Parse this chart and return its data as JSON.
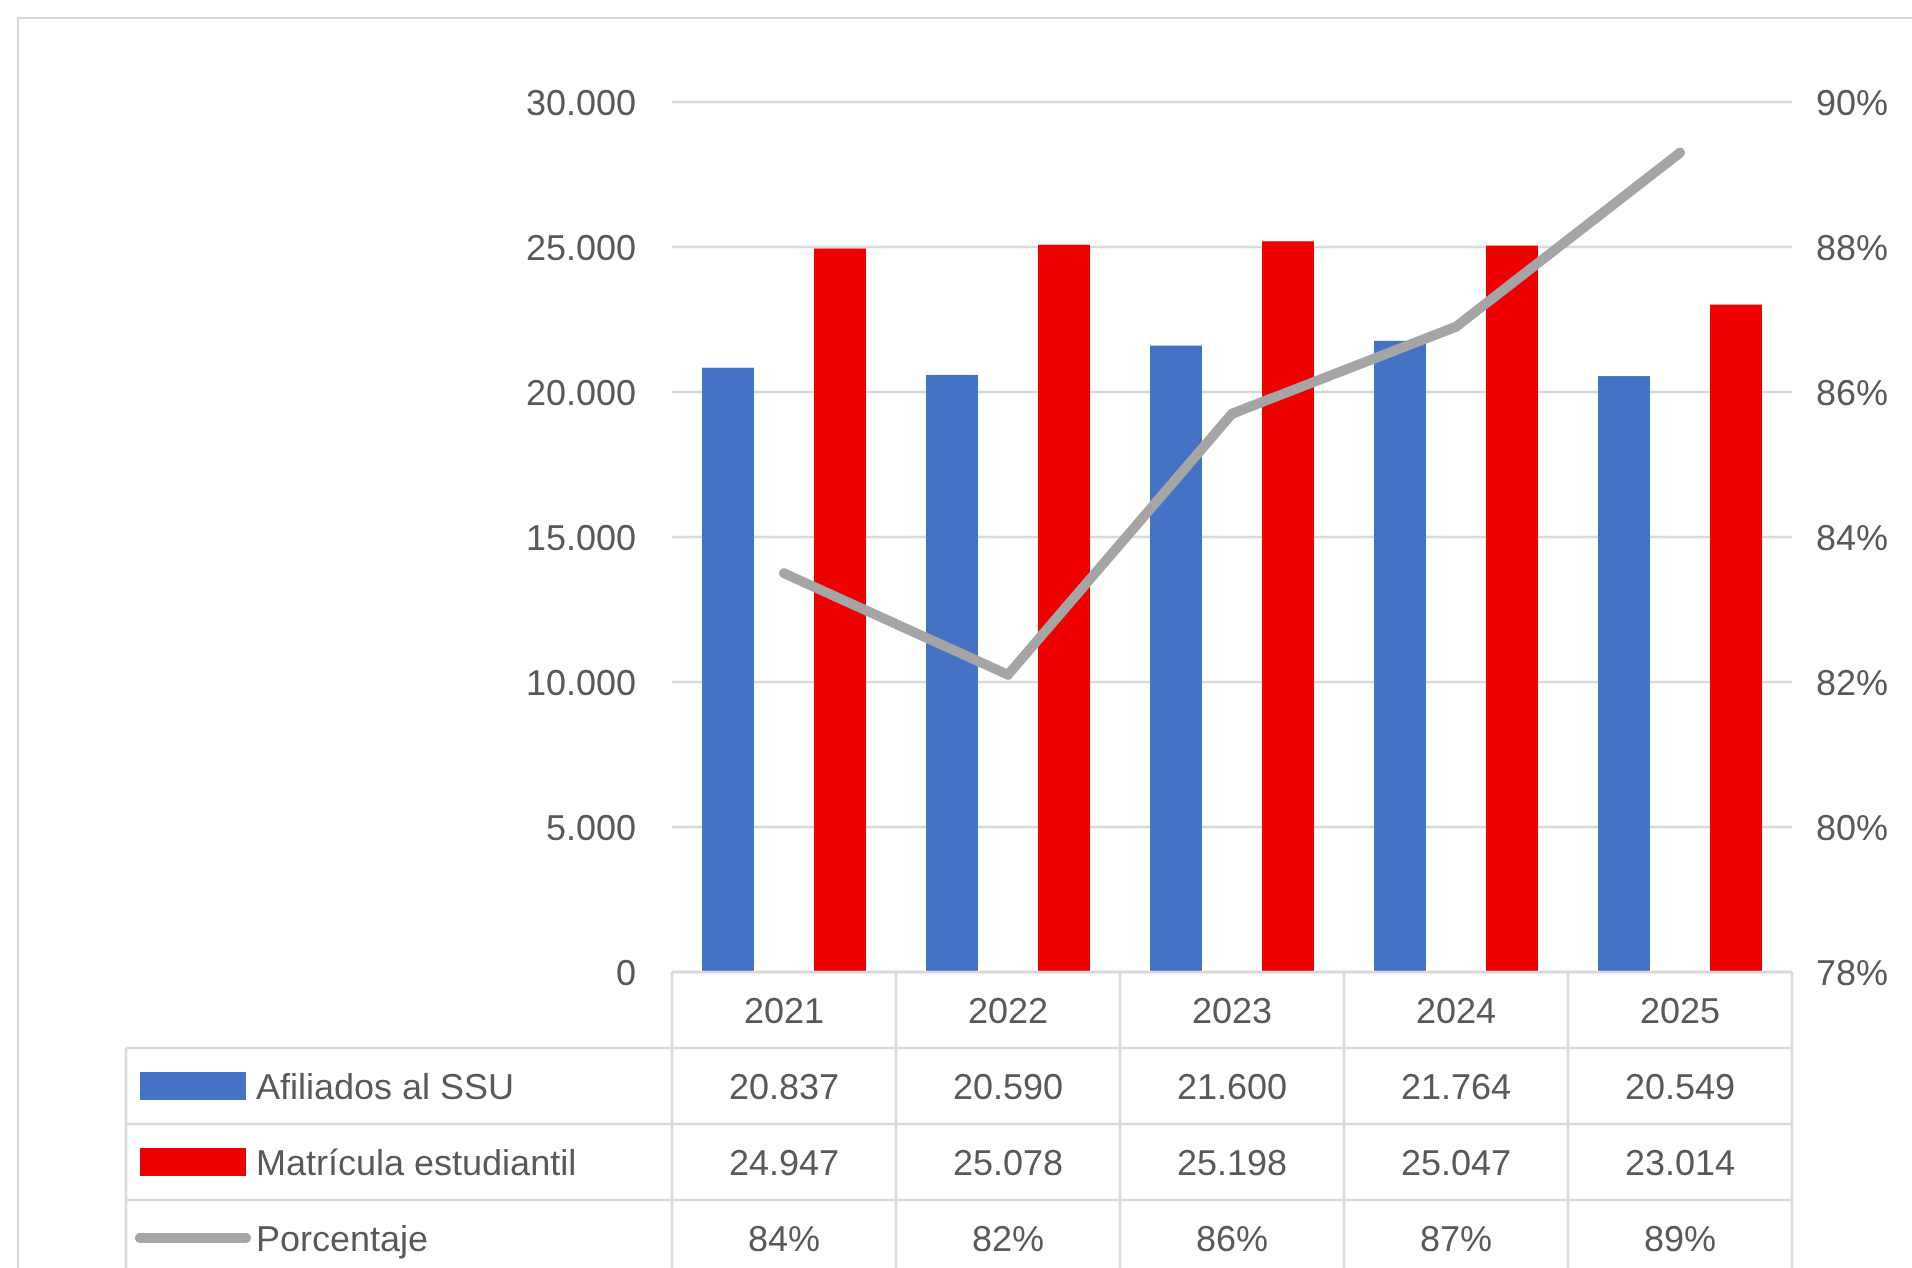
{
  "chart_data": {
    "type": "bar",
    "categories": [
      "2021",
      "2022",
      "2023",
      "2024",
      "2025"
    ],
    "series": [
      {
        "name": "Afiliados al SSU",
        "color": "#4472c4",
        "values": [
          20837,
          20590,
          21600,
          21764,
          20549
        ],
        "value_labels": [
          "20.837",
          "20.590",
          "21.600",
          "21.764",
          "20.549"
        ]
      },
      {
        "name": "Matrícula estudiantil",
        "color": "#ee0000",
        "values": [
          24947,
          25078,
          25198,
          25047,
          23014
        ],
        "value_labels": [
          "24.947",
          "25.078",
          "25.198",
          "25.047",
          "23.014"
        ]
      },
      {
        "name": "Porcentaje",
        "type": "line",
        "axis": "y2",
        "color": "#a5a5a5",
        "values": [
          83.5,
          82.1,
          85.7,
          86.9,
          89.3
        ],
        "value_labels": [
          "84%",
          "82%",
          "86%",
          "87%",
          "89%"
        ]
      }
    ],
    "ylim": [
      0,
      30000
    ],
    "yticks": [
      {
        "value": 0,
        "label": "0"
      },
      {
        "value": 5000,
        "label": "5.000"
      },
      {
        "value": 10000,
        "label": "10.000"
      },
      {
        "value": 15000,
        "label": "15.000"
      },
      {
        "value": 20000,
        "label": "20.000"
      },
      {
        "value": 25000,
        "label": "25.000"
      },
      {
        "value": 30000,
        "label": "30.000"
      }
    ],
    "y2lim": [
      78,
      90
    ],
    "y2ticks": [
      {
        "value": 78,
        "label": "78%"
      },
      {
        "value": 80,
        "label": "80%"
      },
      {
        "value": 82,
        "label": "82%"
      },
      {
        "value": 84,
        "label": "84%"
      },
      {
        "value": 86,
        "label": "86%"
      },
      {
        "value": 88,
        "label": "88%"
      },
      {
        "value": 90,
        "label": "90%"
      }
    ],
    "grid": "y",
    "legend": "bottom",
    "marker": "none",
    "line_style": "solid"
  }
}
